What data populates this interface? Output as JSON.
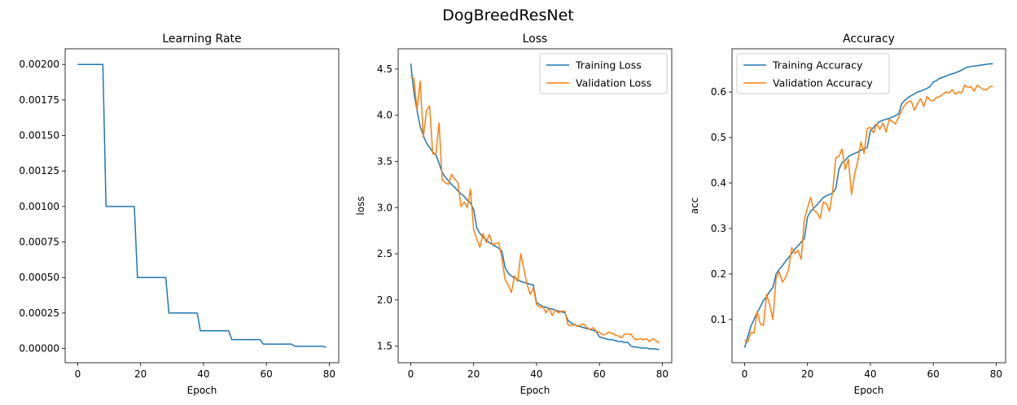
{
  "suptitle": "DogBreedResNet",
  "chart_data": [
    {
      "type": "line",
      "title": "Learning Rate",
      "xlabel": "Epoch",
      "ylabel": "",
      "xlim": [
        -4,
        83
      ],
      "ylim": [
        -0.0001,
        0.00211
      ],
      "xticks": [
        0,
        20,
        40,
        60,
        80
      ],
      "xtick_labels": [
        "0",
        "20",
        "40",
        "60",
        "80"
      ],
      "yticks": [
        0,
        0.00025,
        0.0005,
        0.00075,
        0.001,
        0.00125,
        0.0015,
        0.00175,
        0.002
      ],
      "ytick_labels": [
        "0.00000",
        "0.00025",
        "0.00050",
        "0.00075",
        "0.00100",
        "0.00125",
        "0.00150",
        "0.00175",
        "0.00200"
      ],
      "legend": null,
      "series": [
        {
          "color": "#1f77b4",
          "x": [
            0,
            8,
            9,
            18,
            19,
            28,
            29,
            38,
            39,
            48,
            49,
            58,
            59,
            68,
            69,
            78,
            79
          ],
          "y": [
            0.002,
            0.002,
            0.001,
            0.001,
            0.0005,
            0.0005,
            0.00025,
            0.00025,
            0.000125,
            0.000125,
            6.25e-05,
            6.25e-05,
            3.125e-05,
            3.125e-05,
            1.56e-05,
            1.56e-05,
            7.8e-06
          ]
        }
      ]
    },
    {
      "type": "line",
      "title": "Loss",
      "xlabel": "Epoch",
      "ylabel": "loss",
      "xlim": [
        -4,
        83
      ],
      "ylim": [
        1.32,
        4.72
      ],
      "xticks": [
        0,
        20,
        40,
        60,
        80
      ],
      "xtick_labels": [
        "0",
        "20",
        "40",
        "60",
        "80"
      ],
      "yticks": [
        1.5,
        2.0,
        2.5,
        3.0,
        3.5,
        4.0,
        4.5
      ],
      "ytick_labels": [
        "1.5",
        "2.0",
        "2.5",
        "3.0",
        "3.5",
        "4.0",
        "4.5"
      ],
      "legend": "top-right",
      "series": [
        {
          "name": "Training Loss",
          "color": "#1f77b4",
          "y": [
            4.56,
            4.25,
            4.05,
            3.88,
            3.78,
            3.7,
            3.65,
            3.6,
            3.57,
            3.48,
            3.38,
            3.33,
            3.29,
            3.25,
            3.22,
            3.18,
            3.15,
            3.12,
            3.08,
            3.05,
            2.98,
            2.78,
            2.72,
            2.68,
            2.65,
            2.62,
            2.6,
            2.58,
            2.56,
            2.53,
            2.35,
            2.29,
            2.26,
            2.24,
            2.22,
            2.2,
            2.19,
            2.18,
            2.17,
            2.16,
            1.97,
            1.95,
            1.93,
            1.92,
            1.91,
            1.9,
            1.89,
            1.88,
            1.87,
            1.86,
            1.78,
            1.75,
            1.73,
            1.72,
            1.71,
            1.7,
            1.69,
            1.68,
            1.67,
            1.66,
            1.6,
            1.59,
            1.58,
            1.57,
            1.57,
            1.56,
            1.55,
            1.55,
            1.54,
            1.54,
            1.5,
            1.49,
            1.49,
            1.48,
            1.48,
            1.48,
            1.47,
            1.47,
            1.47,
            1.46
          ]
        },
        {
          "name": "Validation Loss",
          "color": "#ff7f0e",
          "y": [
            4.41,
            4.4,
            4.06,
            4.37,
            3.76,
            4.05,
            4.1,
            3.58,
            3.58,
            3.92,
            3.3,
            3.27,
            3.25,
            3.36,
            3.31,
            3.27,
            3.01,
            3.06,
            3.0,
            3.2,
            2.76,
            2.66,
            2.57,
            2.72,
            2.62,
            2.71,
            2.6,
            2.61,
            2.62,
            2.45,
            2.22,
            2.16,
            2.08,
            2.26,
            2.2,
            2.5,
            2.33,
            2.17,
            2.06,
            2.13,
            1.95,
            1.92,
            1.93,
            1.86,
            1.91,
            1.83,
            1.89,
            1.86,
            1.88,
            1.88,
            1.73,
            1.72,
            1.74,
            1.71,
            1.73,
            1.74,
            1.7,
            1.68,
            1.7,
            1.66,
            1.65,
            1.62,
            1.63,
            1.65,
            1.64,
            1.62,
            1.61,
            1.59,
            1.63,
            1.63,
            1.63,
            1.58,
            1.57,
            1.58,
            1.57,
            1.58,
            1.55,
            1.58,
            1.56,
            1.53
          ]
        }
      ]
    },
    {
      "type": "line",
      "title": "Accuracy",
      "xlabel": "Epoch",
      "ylabel": "acc",
      "xlim": [
        -4,
        83
      ],
      "ylim": [
        0.005,
        0.695
      ],
      "xticks": [
        0,
        20,
        40,
        60,
        80
      ],
      "xtick_labels": [
        "0",
        "20",
        "40",
        "60",
        "80"
      ],
      "yticks": [
        0.1,
        0.2,
        0.3,
        0.4,
        0.5,
        0.6
      ],
      "ytick_labels": [
        "0.1",
        "0.2",
        "0.3",
        "0.4",
        "0.5",
        "0.6"
      ],
      "legend": "top-left",
      "series": [
        {
          "name": "Training Accuracy",
          "color": "#1f77b4",
          "y": [
            0.038,
            0.062,
            0.085,
            0.1,
            0.115,
            0.128,
            0.142,
            0.15,
            0.162,
            0.17,
            0.2,
            0.21,
            0.218,
            0.228,
            0.236,
            0.245,
            0.255,
            0.262,
            0.27,
            0.278,
            0.325,
            0.338,
            0.345,
            0.352,
            0.36,
            0.368,
            0.372,
            0.375,
            0.378,
            0.388,
            0.43,
            0.445,
            0.45,
            0.458,
            0.462,
            0.465,
            0.468,
            0.472,
            0.475,
            0.478,
            0.515,
            0.522,
            0.53,
            0.535,
            0.538,
            0.54,
            0.542,
            0.545,
            0.548,
            0.552,
            0.575,
            0.582,
            0.588,
            0.592,
            0.596,
            0.6,
            0.602,
            0.605,
            0.608,
            0.612,
            0.622,
            0.625,
            0.63,
            0.632,
            0.635,
            0.638,
            0.64,
            0.642,
            0.645,
            0.648,
            0.652,
            0.655,
            0.656,
            0.657,
            0.658,
            0.659,
            0.66,
            0.661,
            0.662,
            0.662
          ]
        },
        {
          "name": "Validation Accuracy",
          "color": "#ff7f0e",
          "y": [
            0.055,
            0.05,
            0.072,
            0.07,
            0.118,
            0.09,
            0.087,
            0.155,
            0.132,
            0.1,
            0.19,
            0.205,
            0.182,
            0.192,
            0.21,
            0.258,
            0.245,
            0.252,
            0.232,
            0.32,
            0.345,
            0.368,
            0.34,
            0.335,
            0.322,
            0.358,
            0.355,
            0.338,
            0.382,
            0.455,
            0.458,
            0.475,
            0.43,
            0.452,
            0.375,
            0.42,
            0.448,
            0.49,
            0.465,
            0.52,
            0.522,
            0.51,
            0.53,
            0.518,
            0.532,
            0.512,
            0.54,
            0.535,
            0.53,
            0.545,
            0.56,
            0.572,
            0.578,
            0.58,
            0.56,
            0.575,
            0.585,
            0.568,
            0.59,
            0.582,
            0.58,
            0.588,
            0.59,
            0.595,
            0.6,
            0.598,
            0.605,
            0.595,
            0.6,
            0.598,
            0.615,
            0.61,
            0.612,
            0.602,
            0.615,
            0.61,
            0.605,
            0.605,
            0.612,
            0.612
          ]
        }
      ]
    }
  ]
}
